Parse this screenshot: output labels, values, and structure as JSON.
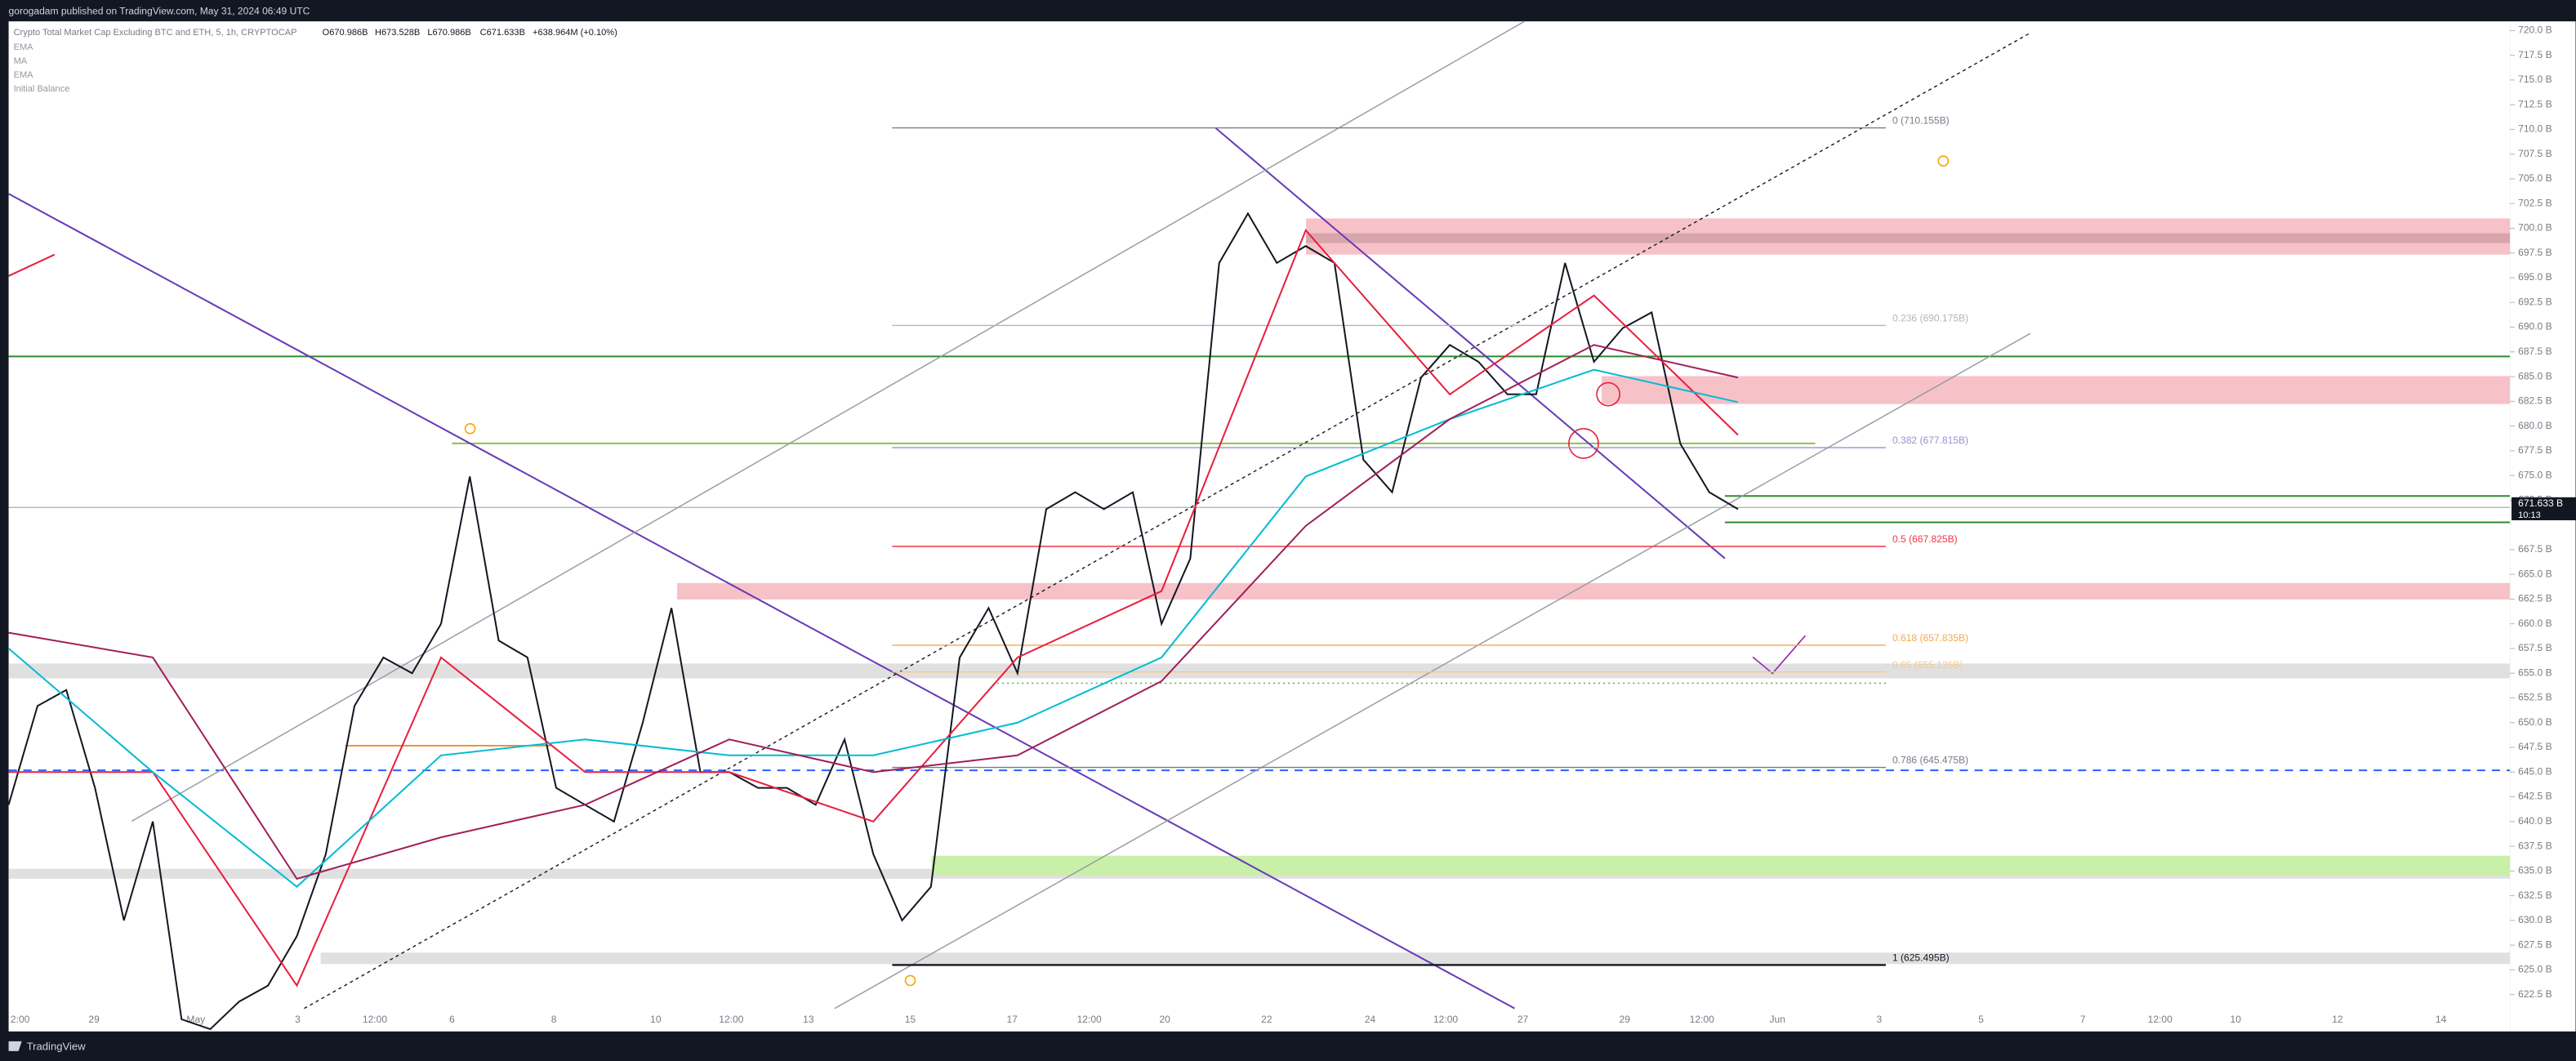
{
  "header": {
    "publisher": "gorogadam published on TradingView.com, May 31, 2024 06:49 UTC",
    "brand": "TradingView"
  },
  "chart_data": {
    "type": "line",
    "ohlc": [
      "O670.986B",
      "H673.528B",
      "L670.986B",
      "C671.633B",
      "+638.964M (+0.10%)"
    ],
    "indicators": [
      "EMA",
      "MA",
      "EMA",
      "Initial Balance"
    ],
    "series": [
      {
        "name": "Crypto Total Market Cap Excluding BTC and ETH, 5, 1h, CRYPTOCAP",
        "color": "#131722",
        "values": [
          641.7,
          651.7,
          653.3,
          643.4,
          630,
          640,
          620,
          619,
          621.8,
          623.4,
          628.4,
          636.7,
          651.7,
          656.6,
          655,
          660,
          674.9,
          658.3,
          656.6,
          643.4,
          641.7,
          640,
          650,
          661.6,
          645,
          645,
          643.4,
          643.4,
          641.7,
          648.3,
          636.7,
          630,
          633.4,
          656.6,
          661.6,
          655,
          671.6,
          673.3,
          671.6,
          673.3,
          660,
          666.6,
          696.5,
          701.5,
          696.5,
          698.2,
          696.5,
          676.6,
          673.3,
          684.9,
          688.2,
          686.5,
          683.2,
          683.2,
          696.5,
          686.5,
          689.9,
          691.5,
          678.2,
          673.3,
          671.6
        ]
      },
      {
        "name": "EMA",
        "color": "#e91e3f",
        "values": [
          645,
          645,
          623.4,
          656.6,
          645,
          645,
          640,
          656.6,
          663.3,
          699.8,
          683.2,
          693.2,
          679.1
        ]
      },
      {
        "name": "MA",
        "color": "#00bcd4",
        "values": [
          657.5,
          645,
          633.4,
          646.7,
          648.3,
          646.7,
          646.7,
          650,
          656.6,
          674.9,
          680.7,
          685.7,
          682.4
        ]
      },
      {
        "name": "EMA",
        "color": "#a0205a",
        "values": [
          659.1,
          656.6,
          634.2,
          638.4,
          641.7,
          648.3,
          645,
          646.7,
          654.2,
          669.9,
          680.7,
          688.2,
          684.9
        ]
      }
    ],
    "last_price": {
      "value": 671.633,
      "label": "671.633 B",
      "countdown": "10:13"
    },
    "fib": [
      {
        "value": 710.155,
        "label": "0 (710.155B)",
        "color": "#787b86"
      },
      {
        "value": 690.175,
        "label": "0.236 (690.175B)",
        "color": "#b2b5be"
      },
      {
        "value": 677.815,
        "label": "0.382 (677.815B)",
        "color": "#9c8fcf"
      },
      {
        "value": 667.825,
        "label": "0.5 (667.825B)",
        "color": "#f23645"
      },
      {
        "value": 657.835,
        "label": "0.618 (657.835B)",
        "color": "#f7a94b"
      },
      {
        "value": 655.126,
        "label": "0.65 (655.126B)",
        "color": "#f7c88a"
      },
      {
        "value": 645.475,
        "label": "0.786 (645.475B)",
        "color": "#787b86"
      },
      {
        "value": 625.495,
        "label": "1 (625.495B)",
        "color": "#131722"
      }
    ],
    "ylim": [
      618.77,
      720.93
    ],
    "yticks": [
      {
        "value": 720,
        "label": "720.0 B"
      },
      {
        "value": 717.5,
        "label": "717.5 B"
      },
      {
        "value": 715,
        "label": "715.0 B"
      },
      {
        "value": 712.5,
        "label": "712.5 B"
      },
      {
        "value": 710,
        "label": "710.0 B"
      },
      {
        "value": 707.5,
        "label": "707.5 B"
      },
      {
        "value": 705,
        "label": "705.0 B"
      },
      {
        "value": 702.5,
        "label": "702.5 B"
      },
      {
        "value": 700,
        "label": "700.0 B"
      },
      {
        "value": 697.5,
        "label": "697.5 B"
      },
      {
        "value": 695,
        "label": "695.0 B"
      },
      {
        "value": 692.5,
        "label": "692.5 B"
      },
      {
        "value": 690,
        "label": "690.0 B"
      },
      {
        "value": 687.5,
        "label": "687.5 B"
      },
      {
        "value": 685,
        "label": "685.0 B"
      },
      {
        "value": 682.5,
        "label": "682.5 B"
      },
      {
        "value": 680,
        "label": "680.0 B"
      },
      {
        "value": 677.5,
        "label": "677.5 B"
      },
      {
        "value": 675,
        "label": "675.0 B"
      },
      {
        "value": 672.5,
        "label": "672.5 B"
      },
      {
        "value": 667.5,
        "label": "667.5 B"
      },
      {
        "value": 665,
        "label": "665.0 B"
      },
      {
        "value": 662.5,
        "label": "662.5 B"
      },
      {
        "value": 660,
        "label": "660.0 B"
      },
      {
        "value": 657.5,
        "label": "657.5 B"
      },
      {
        "value": 655,
        "label": "655.0 B"
      },
      {
        "value": 652.5,
        "label": "652.5 B"
      },
      {
        "value": 650,
        "label": "650.0 B"
      },
      {
        "value": 647.5,
        "label": "647.5 B"
      },
      {
        "value": 645,
        "label": "645.0 B"
      },
      {
        "value": 642.5,
        "label": "642.5 B"
      },
      {
        "value": 640,
        "label": "640.0 B"
      },
      {
        "value": 637.5,
        "label": "637.5 B"
      },
      {
        "value": 635,
        "label": "635.0 B"
      },
      {
        "value": 632.5,
        "label": "632.5 B"
      },
      {
        "value": 630,
        "label": "630.0 B"
      },
      {
        "value": 627.5,
        "label": "627.5 B"
      },
      {
        "value": 625,
        "label": "625.0 B"
      },
      {
        "value": 622.5,
        "label": "622.5 B"
      }
    ],
    "x_labels": [
      "2:00",
      "29",
      "May",
      "3",
      "12:00",
      "6",
      "8",
      "10",
      "12:00",
      "13",
      "15",
      "17",
      "12:00",
      "20",
      "22",
      "24",
      "12:00",
      "27",
      "29",
      "12:00",
      "Jun",
      "3",
      "5",
      "7",
      "12:00",
      "10",
      "12",
      "14"
    ],
    "grid": false
  }
}
